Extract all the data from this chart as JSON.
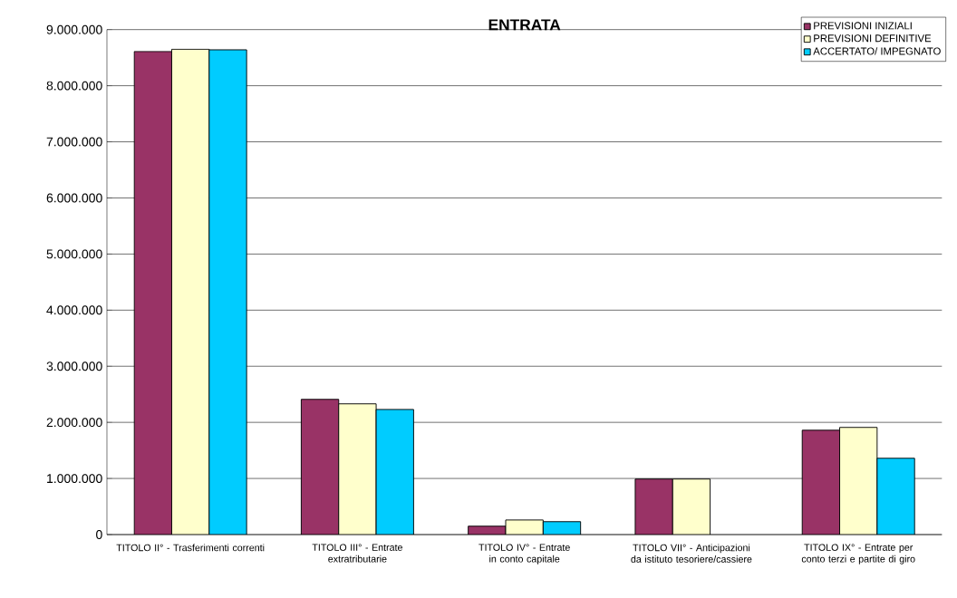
{
  "chart_data": {
    "type": "bar",
    "title": "ENTRATA",
    "categories": [
      "TITOLO II° - Trasferimenti correnti",
      "TITOLO III° - Entrate extratributarie",
      "TITOLO IV° - Entrate in conto capitale",
      "TITOLO VII° - Anticipazioni da istituto tesoriere/cassiere",
      "TITOLO IX° - Entrate per conto terzi e partite di giro"
    ],
    "series": [
      {
        "name": "PREVISIONI INIZIALI",
        "color": "#993366",
        "values": [
          8610000,
          2410000,
          150000,
          990000,
          1860000
        ]
      },
      {
        "name": "PREVISIONI DEFINITIVE",
        "color": "#ffffcc",
        "values": [
          8650000,
          2330000,
          260000,
          990000,
          1910000
        ]
      },
      {
        "name": "ACCERTATO/ IMPEGNATO",
        "color": "#00ccff",
        "values": [
          8640000,
          2230000,
          230000,
          null,
          1360000
        ]
      }
    ],
    "ylim": [
      0,
      9000000
    ],
    "yticks": [
      {
        "value": 0,
        "label": "0"
      },
      {
        "value": 1000000,
        "label": "1.000.000"
      },
      {
        "value": 2000000,
        "label": "2.000.000"
      },
      {
        "value": 3000000,
        "label": "3.000.000"
      },
      {
        "value": 4000000,
        "label": "4.000.000"
      },
      {
        "value": 5000000,
        "label": "5.000.000"
      },
      {
        "value": 6000000,
        "label": "6.000.000"
      },
      {
        "value": 7000000,
        "label": "7.000.000"
      },
      {
        "value": 8000000,
        "label": "8.000.000"
      },
      {
        "value": 9000000,
        "label": "9.000.000"
      }
    ],
    "grid": "y",
    "legend": "top right"
  }
}
